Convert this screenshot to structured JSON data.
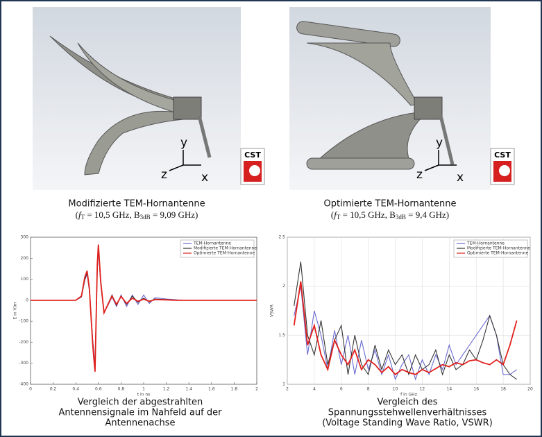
{
  "renders": [
    {
      "caption": "Modifizierte TEM-Hornantenne",
      "formula": [
        "(",
        "f",
        "T",
        " = 10,5 GHz, B",
        "3dB",
        " = 9,09 GHz)"
      ],
      "logo": "CST",
      "axes": [
        "y",
        "z",
        "x"
      ]
    },
    {
      "caption": "Optimierte TEM-Hornantenne",
      "formula": [
        "(",
        "f",
        "T",
        " = 10,5 GHz, B",
        "3dB",
        " = 9,4 GHz)"
      ],
      "logo": "CST",
      "axes": [
        "y",
        "z",
        "x"
      ]
    }
  ],
  "chart_data": [
    {
      "type": "line",
      "xlabel": "t in ns",
      "ylabel": "E in V/m",
      "x": [
        0,
        0.4,
        0.45,
        0.48,
        0.5,
        0.52,
        0.55,
        0.57,
        0.59,
        0.6,
        0.62,
        0.65,
        0.68,
        0.72,
        0.76,
        0.8,
        0.85,
        0.9,
        0.95,
        1.0,
        1.05,
        1.1,
        1.2,
        1.3,
        1.4,
        2
      ],
      "series": [
        {
          "name": "TEM-Hornantenne",
          "color": "#6a6ad0",
          "values": [
            0,
            0,
            15,
            95,
            125,
            45,
            -190,
            -310,
            140,
            240,
            75,
            -55,
            -30,
            15,
            -30,
            25,
            -30,
            25,
            -20,
            25,
            -15,
            12,
            6,
            2,
            0,
            0
          ]
        },
        {
          "name": "Modifizierte TEM-Hornantenne",
          "color": "#333333",
          "values": [
            0,
            0,
            18,
            100,
            130,
            50,
            -200,
            -320,
            155,
            255,
            80,
            -60,
            -25,
            25,
            -25,
            20,
            -20,
            20,
            -10,
            10,
            -8,
            6,
            3,
            1,
            0,
            0
          ]
        },
        {
          "name": "Optimierte TEM-Hornantenne",
          "color": "#e0201c",
          "values": [
            0,
            0,
            20,
            110,
            140,
            55,
            -215,
            -340,
            170,
            265,
            90,
            -60,
            -25,
            20,
            -20,
            18,
            -15,
            10,
            -5,
            5,
            -5,
            3,
            2,
            0,
            0,
            0
          ]
        }
      ],
      "xlim": [
        0,
        2
      ],
      "xticks": [
        0,
        0.2,
        0.4,
        0.6,
        0.8,
        1,
        1.2,
        1.4,
        1.6,
        1.8,
        2
      ],
      "ylim": [
        -400,
        300
      ],
      "yticks": [
        -400,
        -300,
        -200,
        -100,
        0,
        100,
        200,
        300
      ],
      "grid": false
    },
    {
      "type": "line",
      "xlabel": "f in GHz",
      "ylabel": "VSWR",
      "x": [
        2.5,
        3,
        3.5,
        4,
        4.5,
        5,
        5.5,
        6,
        6.5,
        7,
        7.5,
        8,
        8.5,
        9,
        9.5,
        10,
        10.5,
        11,
        11.5,
        12,
        12.5,
        13,
        13.5,
        14,
        14.5,
        15,
        15.5,
        16,
        16.5,
        17,
        17.5,
        18,
        18.5,
        19
      ],
      "series": [
        {
          "name": "TEM-Hornantenne",
          "color": "#6a6ad0",
          "values": [
            1.7,
            2.0,
            1.3,
            1.75,
            1.5,
            1.15,
            1.55,
            1.2,
            1.5,
            1.1,
            1.45,
            1.15,
            1.35,
            1.1,
            1.3,
            1.05,
            1.2,
            1.3,
            1.05,
            1.25,
            1.1,
            1.3,
            1.15,
            1.4,
            1.2,
            1.3,
            1.4,
            1.5,
            1.6,
            1.7,
            1.5,
            1.1,
            1.1,
            1.15
          ]
        },
        {
          "name": "Modifizierte TEM-Hornantenne",
          "color": "#333333",
          "values": [
            1.8,
            2.25,
            1.5,
            1.3,
            1.65,
            1.2,
            1.45,
            1.6,
            1.1,
            1.5,
            1.2,
            1.1,
            1.4,
            1.15,
            1.35,
            1.2,
            1.3,
            1.1,
            1.3,
            1.15,
            1.2,
            1.35,
            1.1,
            1.3,
            1.15,
            1.2,
            1.35,
            1.25,
            1.45,
            1.7,
            1.5,
            1.2,
            1.1,
            1.05
          ]
        },
        {
          "name": "Optimierte TEM-Hornantenne",
          "color": "#e0201c",
          "values": [
            1.6,
            2.05,
            1.4,
            1.6,
            1.3,
            1.15,
            1.45,
            1.3,
            1.2,
            1.35,
            1.15,
            1.25,
            1.2,
            1.12,
            1.18,
            1.1,
            1.15,
            1.12,
            1.1,
            1.15,
            1.12,
            1.16,
            1.2,
            1.18,
            1.22,
            1.2,
            1.24,
            1.25,
            1.22,
            1.2,
            1.25,
            1.2,
            1.4,
            1.65
          ]
        }
      ],
      "xlim": [
        2,
        20
      ],
      "xticks": [
        2,
        4,
        6,
        8,
        10,
        12,
        14,
        16,
        18,
        20
      ],
      "ylim": [
        1,
        2.5
      ],
      "yticks": [
        1,
        1.5,
        2,
        2.5
      ],
      "grid": true
    }
  ],
  "chart_captions": [
    [
      "Vergleich der abgestrahlten",
      "Antennensignale im Nahfeld auf der",
      "Antennenachse"
    ],
    [
      "Vergleich des",
      "Spannungsstehwellenverhältnisses",
      "(Voltage Standing Wave Ratio, VSWR)"
    ]
  ]
}
